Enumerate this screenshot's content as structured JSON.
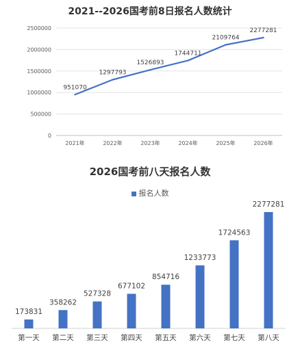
{
  "chart_data": [
    {
      "type": "line",
      "title": "2021--2026国考前8日报名人数统计",
      "x": [
        "2021年",
        "2022年",
        "2023年",
        "2024年",
        "2025年",
        "2026年"
      ],
      "series": [
        {
          "values": [
            951070,
            1297793,
            1526893,
            1744711,
            2109764,
            2277281
          ]
        }
      ],
      "yticks": [
        "0",
        "500000",
        "1000000",
        "1500000",
        "2000000",
        "2500000"
      ],
      "ylim": [
        0,
        2500000
      ],
      "grid": true,
      "color": "#4472C4"
    },
    {
      "type": "bar",
      "title": "2026国考前八天报名人数",
      "categories": [
        "第一天",
        "第二天",
        "第三天",
        "第四天",
        "第五天",
        "第六天",
        "第七天",
        "第八天"
      ],
      "series": [
        {
          "name": "报名人数",
          "values": [
            173831,
            358262,
            527328,
            677102,
            854716,
            1233773,
            1724563,
            2277281
          ]
        }
      ],
      "legend": "top",
      "grid": false,
      "color": "#4472C4"
    }
  ]
}
